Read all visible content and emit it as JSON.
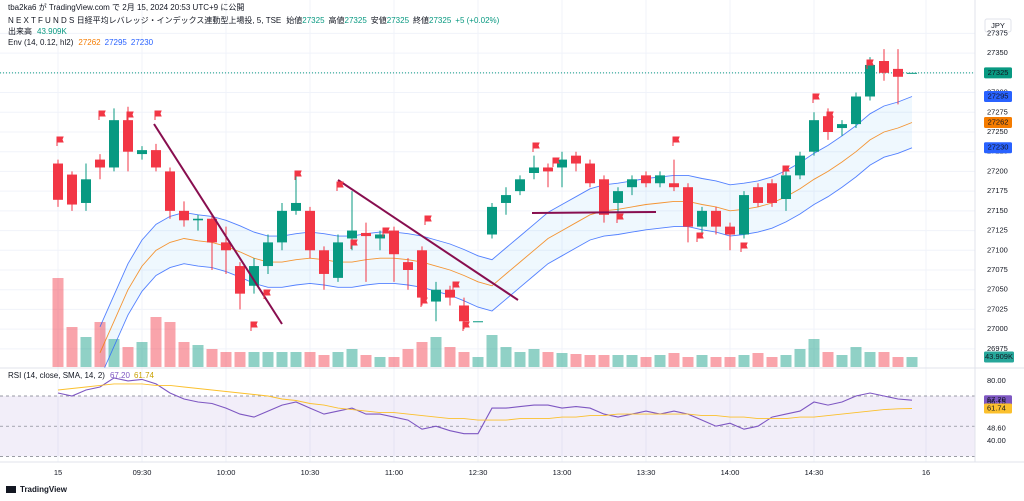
{
  "header": {
    "published": "tba2ka6 が TradingView.com で 2月 15, 2024 20:53 UTC+9 に公開",
    "symbol": "N E X T   F U N D S   日経平均レバレッジ・インデックス連動型上場投, 5, TSE",
    "open_label": "始値",
    "open": 27325,
    "high_label": "高値",
    "high": 27325,
    "low_label": "安値",
    "low": 27325,
    "close_label": "終値",
    "close": 27325,
    "change": "+5 (+0.02%)",
    "currency": "JPY",
    "logo": "TradingView"
  },
  "chart_data": {
    "type": "candlestick",
    "up_color": "#089981",
    "down_color": "#f23645",
    "ylim": [
      26952,
      27392
    ],
    "yticks": [
      26975,
      27000,
      27025,
      27050,
      27075,
      27100,
      27125,
      27150,
      27175,
      27200,
      27225,
      27250,
      27275,
      27300,
      27325,
      27350,
      27375
    ],
    "grid": true,
    "xticks": [
      {
        "value": 0,
        "label": "15"
      },
      {
        "value": 6,
        "label": "09:30"
      },
      {
        "value": 12,
        "label": "10:00"
      },
      {
        "value": 18,
        "label": "10:30"
      },
      {
        "value": 24,
        "label": "11:00"
      },
      {
        "value": 30,
        "label": "12:30"
      },
      {
        "value": 36,
        "label": "13:00"
      },
      {
        "value": 42,
        "label": "13:30"
      },
      {
        "value": 48,
        "label": "14:00"
      },
      {
        "value": 54,
        "label": "14:30"
      },
      {
        "value": 62,
        "label": "16"
      }
    ],
    "open": [
      27210,
      27196,
      27160,
      27215,
      27205,
      27265,
      27222,
      27227,
      27200,
      27150,
      27138,
      27140,
      27110,
      27080,
      27055,
      27080,
      27110,
      27150,
      27150,
      27100,
      27065,
      27115,
      27122,
      27115,
      27125,
      27085,
      27100,
      27035,
      27050,
      27030,
      27010,
      27120,
      27160,
      27175,
      27198,
      27205,
      27205,
      27220,
      27210,
      27190,
      27160,
      27180,
      27195,
      27185,
      27185,
      27180,
      27130,
      27150,
      27130,
      27120,
      27180,
      27185,
      27165,
      27195,
      27225,
      27270,
      27255,
      27260,
      27295,
      27340,
      27330,
      27325
    ],
    "high": [
      27215,
      27200,
      27210,
      27222,
      27280,
      27282,
      27232,
      27235,
      27205,
      27162,
      27145,
      27145,
      27130,
      27085,
      27090,
      27120,
      27160,
      27195,
      27155,
      27105,
      27120,
      27175,
      27135,
      27125,
      27130,
      27090,
      27105,
      27060,
      27055,
      27040,
      27010,
      27160,
      27180,
      27195,
      27220,
      27210,
      27225,
      27225,
      27215,
      27195,
      27180,
      27195,
      27200,
      27200,
      27215,
      27185,
      27155,
      27155,
      27135,
      27175,
      27185,
      27190,
      27200,
      27225,
      27275,
      27280,
      27265,
      27300,
      27345,
      27355,
      27355,
      27325
    ],
    "low": [
      27155,
      27150,
      27150,
      27190,
      27200,
      27200,
      27215,
      27200,
      27140,
      27130,
      27125,
      27075,
      27070,
      27025,
      27045,
      27070,
      27100,
      27145,
      27090,
      27050,
      27060,
      27100,
      27060,
      27100,
      27060,
      27050,
      27030,
      27010,
      27030,
      27000,
      27010,
      27115,
      27145,
      27170,
      27190,
      27180,
      27180,
      27200,
      27180,
      27135,
      27140,
      27170,
      27180,
      27180,
      27175,
      27110,
      27120,
      27120,
      27100,
      27115,
      27155,
      27155,
      27150,
      27190,
      27220,
      27240,
      27245,
      27255,
      27290,
      27315,
      27285,
      27325
    ],
    "close": [
      27164,
      27158,
      27190,
      27205,
      27265,
      27225,
      27227,
      27205,
      27150,
      27138,
      27140,
      27110,
      27100,
      27045,
      27080,
      27110,
      27150,
      27160,
      27100,
      27070,
      27110,
      27125,
      27118,
      27120,
      27095,
      27075,
      27040,
      27050,
      27040,
      27010,
      27010,
      27155,
      27170,
      27190,
      27205,
      27200,
      27215,
      27210,
      27185,
      27145,
      27175,
      27190,
      27185,
      27195,
      27180,
      27130,
      27150,
      27130,
      27120,
      27170,
      27160,
      27160,
      27195,
      27220,
      27265,
      27250,
      27260,
      27295,
      27335,
      27325,
      27320,
      27325
    ],
    "volume": {
      "name": "出来高",
      "ylim": [
        0,
        1526800
      ],
      "last_label": "43.909K",
      "values": [
        391600,
        176000,
        132000,
        198000,
        123200,
        88000,
        110000,
        220000,
        198000,
        110000,
        96800,
        79200,
        66000,
        66000,
        66000,
        66000,
        66000,
        66000,
        66000,
        52800,
        66000,
        79200,
        52800,
        44000,
        44000,
        79200,
        110000,
        132000,
        88000,
        66000,
        44000,
        140800,
        88000,
        66000,
        79200,
        66000,
        61600,
        57200,
        52800,
        52800,
        52800,
        52800,
        44000,
        52800,
        61600,
        44000,
        52800,
        44000,
        44000,
        52800,
        61600,
        44000,
        52800,
        79200,
        123200,
        66000,
        52800,
        88000,
        66000,
        66000,
        44000,
        43909
      ]
    },
    "envelope": {
      "name": "Env (14, 0.12, hl2)",
      "basis": {
        "color": "#f57c00",
        "values": [
          null,
          null,
          null,
          26970,
          27010,
          27050,
          27080,
          27100,
          27110,
          27115,
          27112,
          27110,
          27105,
          27098,
          27090,
          27085,
          27085,
          27088,
          27090,
          27088,
          27085,
          27085,
          27088,
          27090,
          27090,
          27088,
          27085,
          27080,
          27075,
          27068,
          27060,
          27055,
          27070,
          27085,
          27100,
          27115,
          27125,
          27135,
          27145,
          27150,
          27152,
          27155,
          27158,
          27160,
          27162,
          27162,
          27158,
          27155,
          27150,
          27152,
          27155,
          27160,
          27168,
          27178,
          27190,
          27200,
          27212,
          27225,
          27240,
          27250,
          27255,
          27262
        ]
      },
      "upper": {
        "color": "#2962ff",
        "values": [
          null,
          null,
          null,
          27003,
          27043,
          27083,
          27113,
          27133,
          27143,
          27148,
          27145,
          27143,
          27138,
          27131,
          27123,
          27118,
          27118,
          27121,
          27123,
          27121,
          27118,
          27118,
          27121,
          27123,
          27123,
          27121,
          27118,
          27113,
          27108,
          27101,
          27093,
          27088,
          27103,
          27118,
          27133,
          27148,
          27158,
          27168,
          27178,
          27183,
          27185,
          27188,
          27191,
          27193,
          27195,
          27195,
          27191,
          27188,
          27183,
          27185,
          27188,
          27193,
          27201,
          27211,
          27223,
          27233,
          27245,
          27258,
          27273,
          27283,
          27288,
          27295
        ]
      },
      "lower": {
        "color": "#2962ff",
        "values": [
          null,
          null,
          null,
          26938,
          26978,
          27018,
          27048,
          27068,
          27078,
          27083,
          27080,
          27078,
          27073,
          27066,
          27058,
          27053,
          27053,
          27056,
          27058,
          27056,
          27053,
          27053,
          27056,
          27058,
          27058,
          27056,
          27053,
          27048,
          27043,
          27036,
          27028,
          27023,
          27038,
          27053,
          27068,
          27083,
          27093,
          27103,
          27113,
          27118,
          27120,
          27123,
          27126,
          27128,
          27130,
          27130,
          27126,
          27123,
          27118,
          27120,
          27123,
          27128,
          27136,
          27146,
          27158,
          27168,
          27180,
          27193,
          27208,
          27218,
          27223,
          27230
        ]
      }
    },
    "rsi": {
      "name": "RSI (14, close, SMA, 14, 2)",
      "ylim": [
        28.9,
        87.9
      ],
      "yticks": [
        {
          "value": 80,
          "label": "80.00"
        },
        {
          "value": 40,
          "label": "40.00"
        }
      ],
      "levels": [
        70,
        50,
        30
      ],
      "series": [
        {
          "color": "#7e57c2",
          "values": [
            72,
            70,
            74,
            76,
            82,
            80,
            81,
            78,
            72,
            68,
            66,
            65,
            62,
            58,
            56,
            60,
            64,
            66,
            62,
            58,
            60,
            62,
            58,
            58,
            56,
            54,
            48,
            50,
            47,
            45,
            45,
            62,
            62,
            63,
            64,
            64,
            62,
            63,
            62,
            58,
            56,
            58,
            60,
            58,
            60,
            58,
            54,
            50,
            52,
            48,
            50,
            56,
            58,
            60,
            66,
            64,
            66,
            70,
            72,
            70,
            68,
            67.2
          ]
        },
        {
          "color": "#fbc02d",
          "values": [
            74,
            75,
            76,
            77,
            78,
            78,
            78,
            77,
            77,
            76,
            75,
            74,
            73,
            72,
            71,
            70,
            68,
            67,
            65,
            64,
            62,
            61,
            60,
            59,
            59,
            58,
            57,
            56,
            55,
            55,
            54,
            54,
            54,
            55,
            55,
            55,
            56,
            56,
            57,
            57,
            58,
            58,
            58,
            58,
            58,
            58,
            57,
            57,
            56,
            56,
            55,
            55,
            55,
            56,
            56,
            57,
            58,
            59,
            60,
            61,
            61.5,
            61.74
          ]
        }
      ],
      "markers": [
        {
          "value": 67.2,
          "label": "67.20",
          "color": "#7e57c2"
        },
        {
          "value": 66.15,
          "label": "66.15"
        },
        {
          "value": 61.74,
          "label": "61.74",
          "color": "#fbc02d"
        },
        {
          "value": 48.6,
          "label": "48.60"
        }
      ]
    }
  }
}
